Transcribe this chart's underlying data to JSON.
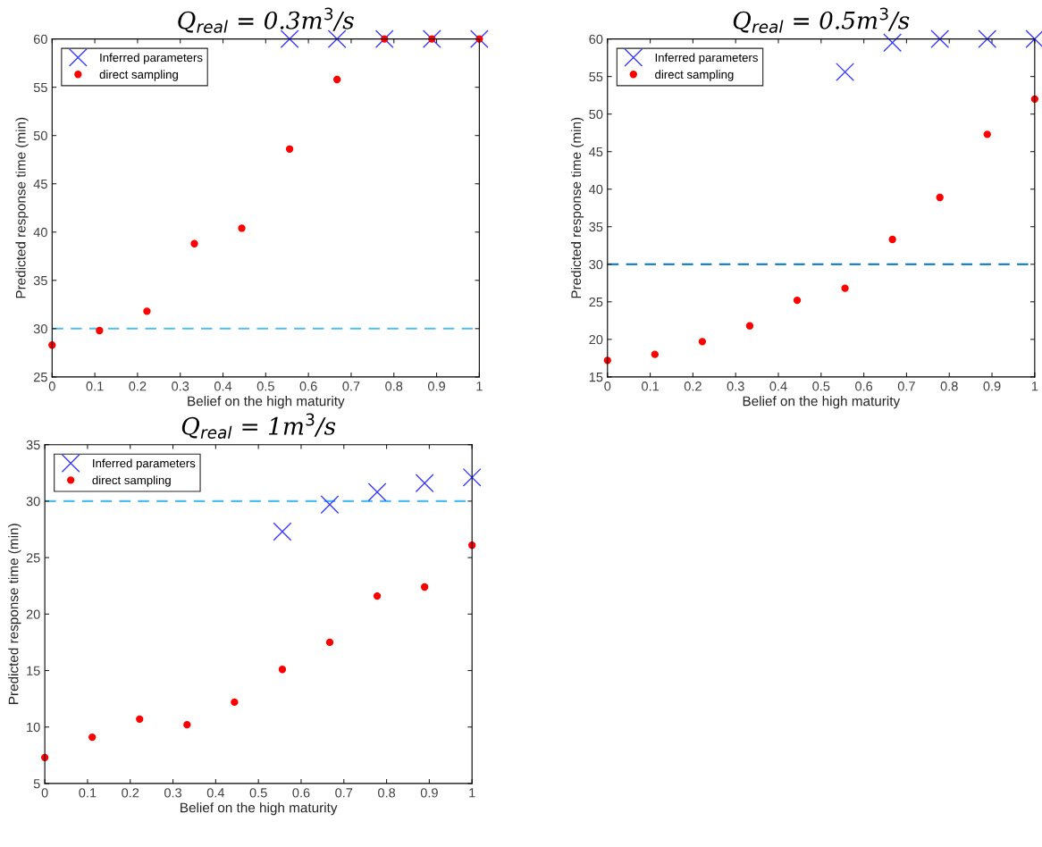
{
  "chart_data": [
    {
      "type": "scatter",
      "title": "Q$_{real}$ = 0.3m$^{3}$/s",
      "xlabel": "Belief on the high maturity",
      "ylabel": "Predicted response time (min)",
      "xlim": [
        0,
        1
      ],
      "xticks": [
        0,
        0.1,
        0.2,
        0.3,
        0.4,
        0.5,
        0.6,
        0.7,
        0.8,
        0.9,
        1
      ],
      "ylim": [
        25,
        60
      ],
      "yticks": [
        25,
        30,
        35,
        40,
        45,
        50,
        55,
        60
      ],
      "legend": "top left",
      "grid": false,
      "series": [
        {
          "name": "Inferred parameters",
          "color": "#3b3bff",
          "marker": "cross",
          "x": [
            0.556,
            0.667,
            0.778,
            0.889,
            1
          ],
          "values": [
            60,
            60,
            60,
            60,
            60
          ]
        },
        {
          "name": "direct sampling",
          "color": "#ff0000",
          "marker": "circle",
          "x": [
            0,
            0.111,
            0.222,
            0.333,
            0.444,
            0.556,
            0.667,
            0.778,
            0.889,
            1
          ],
          "values": [
            28.3,
            29.8,
            31.8,
            38.8,
            40.4,
            48.6,
            55.8,
            60,
            60,
            60
          ]
        }
      ],
      "ref_lines": [
        {
          "axis": "y",
          "value": 30,
          "color": "#4dbeee",
          "line_style": "dashed"
        }
      ]
    },
    {
      "type": "scatter",
      "title": "Q$_{real}$ = 0.5m$^{3}$/s",
      "xlabel": "Belief on the high maturity",
      "ylabel": "Predicted response time (min)",
      "xlim": [
        0,
        1
      ],
      "xticks": [
        0,
        0.1,
        0.2,
        0.3,
        0.4,
        0.5,
        0.6,
        0.7,
        0.8,
        0.9,
        1
      ],
      "ylim": [
        15,
        60
      ],
      "yticks": [
        15,
        20,
        25,
        30,
        35,
        40,
        45,
        50,
        55,
        60
      ],
      "legend": "top left",
      "grid": false,
      "series": [
        {
          "name": "Inferred parameters",
          "color": "#3b3bff",
          "marker": "cross",
          "x": [
            0.556,
            0.667,
            0.778,
            0.889,
            1
          ],
          "values": [
            55.6,
            59.5,
            60,
            60,
            60
          ]
        },
        {
          "name": "direct sampling",
          "color": "#ff0000",
          "marker": "circle",
          "x": [
            0,
            0.111,
            0.222,
            0.333,
            0.444,
            0.556,
            0.667,
            0.778,
            0.889,
            1
          ],
          "values": [
            17.2,
            18.0,
            19.7,
            21.8,
            25.2,
            26.8,
            33.3,
            38.9,
            47.3,
            52.0
          ]
        }
      ],
      "ref_lines": [
        {
          "axis": "y",
          "value": 30,
          "color": "#0072bd",
          "line_style": "dashed"
        }
      ]
    },
    {
      "type": "scatter",
      "title": "Q$_{real}$ = 1m$^{3}$/s",
      "xlabel": "Belief on the high maturity",
      "ylabel": "Predicted response time (min)",
      "xlim": [
        0,
        1
      ],
      "xticks": [
        0,
        0.1,
        0.2,
        0.3,
        0.4,
        0.5,
        0.6,
        0.7,
        0.8,
        0.9,
        1
      ],
      "ylim": [
        5,
        35
      ],
      "yticks": [
        5,
        10,
        15,
        20,
        25,
        30,
        35
      ],
      "legend": "top left",
      "grid": false,
      "series": [
        {
          "name": "Inferred parameters",
          "color": "#3b3bff",
          "marker": "cross",
          "x": [
            0.556,
            0.667,
            0.778,
            0.889,
            1
          ],
          "values": [
            27.3,
            29.7,
            30.8,
            31.6,
            32.1
          ]
        },
        {
          "name": "direct sampling",
          "color": "#ff0000",
          "marker": "circle",
          "x": [
            0,
            0.111,
            0.222,
            0.333,
            0.444,
            0.556,
            0.667,
            0.778,
            0.889,
            1
          ],
          "values": [
            7.3,
            9.1,
            10.7,
            10.2,
            12.2,
            15.1,
            17.5,
            21.6,
            22.4,
            26.1
          ]
        }
      ],
      "ref_lines": [
        {
          "axis": "y",
          "value": 30,
          "color": "#4dbeee",
          "line_style": "dashed"
        }
      ]
    }
  ]
}
